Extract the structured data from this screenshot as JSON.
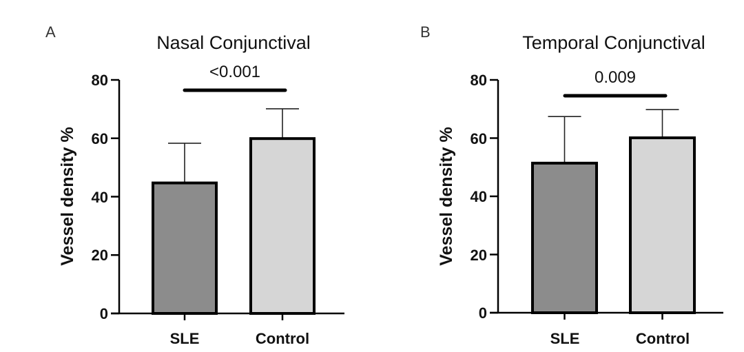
{
  "chart_data": [
    {
      "type": "bar",
      "panel_label": "A",
      "title": "Nasal Conjunctival",
      "xlabel": "",
      "ylabel": "Vessel density %",
      "ylim": [
        0,
        80
      ],
      "yticks": [
        "0",
        "20",
        "40",
        "60",
        "80"
      ],
      "categories": [
        "SLE",
        "Control"
      ],
      "values": [
        44.7,
        59.9
      ],
      "error_upper": [
        58.3,
        70.1
      ],
      "bar_colors": [
        "#8c8c8c",
        "#d6d6d6"
      ],
      "significance": {
        "between": [
          "SLE",
          "Control"
        ],
        "label": "<0.001"
      },
      "grid": false
    },
    {
      "type": "bar",
      "panel_label": "B",
      "title": "Temporal Conjunctival",
      "xlabel": "",
      "ylabel": "Vessel density %",
      "ylim": [
        0,
        80
      ],
      "yticks": [
        "0",
        "20",
        "40",
        "60",
        "80"
      ],
      "categories": [
        "SLE",
        "Control"
      ],
      "values": [
        51.4,
        60.1
      ],
      "error_upper": [
        67.4,
        69.8
      ],
      "bar_colors": [
        "#8c8c8c",
        "#d6d6d6"
      ],
      "significance": {
        "between": [
          "SLE",
          "Control"
        ],
        "label": "0.009"
      },
      "grid": false
    }
  ]
}
